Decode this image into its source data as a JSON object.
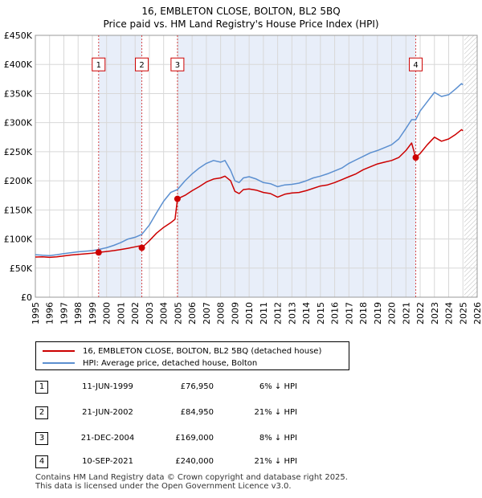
{
  "chart_data": {
    "type": "line",
    "title": "16, EMBLETON CLOSE, BOLTON, BL2 5BQ",
    "subtitle": "Price paid vs. HM Land Registry's House Price Index (HPI)",
    "xlabel": "",
    "ylabel": "",
    "xlim": [
      1995,
      2026
    ],
    "ylim": [
      0,
      450000
    ],
    "x_ticks": [
      "1995",
      "1996",
      "1997",
      "1998",
      "1999",
      "2000",
      "2001",
      "2002",
      "2003",
      "2004",
      "2005",
      "2006",
      "2007",
      "2008",
      "2009",
      "2010",
      "2011",
      "2012",
      "2013",
      "2014",
      "2015",
      "2016",
      "2017",
      "2018",
      "2019",
      "2020",
      "2021",
      "2022",
      "2023",
      "2024",
      "2025",
      "2026"
    ],
    "y_ticks": [
      {
        "value": 0,
        "label": "£0"
      },
      {
        "value": 50000,
        "label": "£50K"
      },
      {
        "value": 100000,
        "label": "£100K"
      },
      {
        "value": 150000,
        "label": "£150K"
      },
      {
        "value": 200000,
        "label": "£200K"
      },
      {
        "value": 250000,
        "label": "£250K"
      },
      {
        "value": 300000,
        "label": "£300K"
      },
      {
        "value": 350000,
        "label": "£350K"
      },
      {
        "value": 400000,
        "label": "£400K"
      },
      {
        "value": 450000,
        "label": "£450K"
      }
    ],
    "grid": true,
    "shaded_ranges": [
      [
        1999.44,
        2002.47
      ],
      [
        2004.97,
        2021.69
      ]
    ],
    "future_hatch_from": 2025.1,
    "series": [
      {
        "name": "16, EMBLETON CLOSE, BOLTON, BL2 5BQ (detached house)",
        "color": "#cc0000",
        "points": [
          [
            1995.0,
            69000
          ],
          [
            1995.5,
            69500
          ],
          [
            1996.0,
            68500
          ],
          [
            1996.5,
            69500
          ],
          [
            1997.0,
            71000
          ],
          [
            1997.5,
            72500
          ],
          [
            1998.0,
            73500
          ],
          [
            1998.5,
            74500
          ],
          [
            1999.0,
            75500
          ],
          [
            1999.44,
            76950
          ],
          [
            2000.0,
            78500
          ],
          [
            2000.5,
            80000
          ],
          [
            2001.0,
            82000
          ],
          [
            2001.5,
            84000
          ],
          [
            2002.0,
            86500
          ],
          [
            2002.3,
            88000
          ],
          [
            2002.47,
            84950
          ],
          [
            2003.0,
            97000
          ],
          [
            2003.5,
            110000
          ],
          [
            2004.0,
            120000
          ],
          [
            2004.5,
            128000
          ],
          [
            2004.8,
            134000
          ],
          [
            2004.97,
            169000
          ],
          [
            2005.5,
            175000
          ],
          [
            2006.0,
            183000
          ],
          [
            2006.5,
            190000
          ],
          [
            2007.0,
            198000
          ],
          [
            2007.5,
            203000
          ],
          [
            2008.0,
            205000
          ],
          [
            2008.3,
            208000
          ],
          [
            2008.7,
            200000
          ],
          [
            2009.0,
            182000
          ],
          [
            2009.3,
            178000
          ],
          [
            2009.6,
            185000
          ],
          [
            2010.0,
            186000
          ],
          [
            2010.5,
            184000
          ],
          [
            2011.0,
            180000
          ],
          [
            2011.5,
            178000
          ],
          [
            2012.0,
            172000
          ],
          [
            2012.5,
            177000
          ],
          [
            2013.0,
            179000
          ],
          [
            2013.5,
            180000
          ],
          [
            2014.0,
            183000
          ],
          [
            2014.5,
            187000
          ],
          [
            2015.0,
            191000
          ],
          [
            2015.5,
            193000
          ],
          [
            2016.0,
            197000
          ],
          [
            2016.5,
            202000
          ],
          [
            2017.0,
            207000
          ],
          [
            2017.5,
            212000
          ],
          [
            2018.0,
            219000
          ],
          [
            2018.5,
            224000
          ],
          [
            2019.0,
            229000
          ],
          [
            2019.5,
            232000
          ],
          [
            2020.0,
            235000
          ],
          [
            2020.5,
            240000
          ],
          [
            2021.0,
            252000
          ],
          [
            2021.4,
            265000
          ],
          [
            2021.69,
            240000
          ],
          [
            2022.0,
            247000
          ],
          [
            2022.5,
            262000
          ],
          [
            2023.0,
            275000
          ],
          [
            2023.5,
            268000
          ],
          [
            2024.0,
            272000
          ],
          [
            2024.5,
            280000
          ],
          [
            2024.9,
            288000
          ],
          [
            2025.0,
            286000
          ]
        ]
      },
      {
        "name": "HPI: Average price, detached house, Bolton",
        "color": "#5b8fd0",
        "points": [
          [
            1995.0,
            73000
          ],
          [
            1995.5,
            72000
          ],
          [
            1996.0,
            71500
          ],
          [
            1996.5,
            73000
          ],
          [
            1997.0,
            75000
          ],
          [
            1997.5,
            76500
          ],
          [
            1998.0,
            78000
          ],
          [
            1998.5,
            79000
          ],
          [
            1999.0,
            80000
          ],
          [
            1999.44,
            82000
          ],
          [
            2000.0,
            85000
          ],
          [
            2000.5,
            89000
          ],
          [
            2001.0,
            94000
          ],
          [
            2001.5,
            100000
          ],
          [
            2002.0,
            103000
          ],
          [
            2002.47,
            108000
          ],
          [
            2003.0,
            124000
          ],
          [
            2003.5,
            145000
          ],
          [
            2004.0,
            165000
          ],
          [
            2004.5,
            180000
          ],
          [
            2004.97,
            185000
          ],
          [
            2005.5,
            200000
          ],
          [
            2006.0,
            212000
          ],
          [
            2006.5,
            222000
          ],
          [
            2007.0,
            230000
          ],
          [
            2007.5,
            235000
          ],
          [
            2008.0,
            232000
          ],
          [
            2008.3,
            235000
          ],
          [
            2008.7,
            218000
          ],
          [
            2009.0,
            200000
          ],
          [
            2009.3,
            197000
          ],
          [
            2009.6,
            205000
          ],
          [
            2010.0,
            207000
          ],
          [
            2010.5,
            203000
          ],
          [
            2011.0,
            197000
          ],
          [
            2011.5,
            195000
          ],
          [
            2012.0,
            190000
          ],
          [
            2012.5,
            193000
          ],
          [
            2013.0,
            194000
          ],
          [
            2013.5,
            196000
          ],
          [
            2014.0,
            200000
          ],
          [
            2014.5,
            205000
          ],
          [
            2015.0,
            208000
          ],
          [
            2015.5,
            212000
          ],
          [
            2016.0,
            217000
          ],
          [
            2016.5,
            222000
          ],
          [
            2017.0,
            230000
          ],
          [
            2017.5,
            236000
          ],
          [
            2018.0,
            242000
          ],
          [
            2018.5,
            248000
          ],
          [
            2019.0,
            252000
          ],
          [
            2019.5,
            257000
          ],
          [
            2020.0,
            262000
          ],
          [
            2020.5,
            272000
          ],
          [
            2021.0,
            290000
          ],
          [
            2021.4,
            305000
          ],
          [
            2021.69,
            305000
          ],
          [
            2022.0,
            320000
          ],
          [
            2022.5,
            336000
          ],
          [
            2023.0,
            352000
          ],
          [
            2023.5,
            345000
          ],
          [
            2024.0,
            348000
          ],
          [
            2024.5,
            358000
          ],
          [
            2024.9,
            367000
          ],
          [
            2025.0,
            365000
          ]
        ]
      }
    ],
    "markers": [
      {
        "label": "1",
        "x": 1999.44,
        "y": 76950
      },
      {
        "label": "2",
        "x": 2002.47,
        "y": 84950
      },
      {
        "label": "3",
        "x": 2004.97,
        "y": 169000
      },
      {
        "label": "4",
        "x": 2021.69,
        "y": 240000
      }
    ]
  },
  "legend": {
    "items": [
      {
        "label": "16, EMBLETON CLOSE, BOLTON, BL2 5BQ (detached house)",
        "color": "#cc0000"
      },
      {
        "label": "HPI: Average price, detached house, Bolton",
        "color": "#5b8fd0"
      }
    ]
  },
  "transactions": [
    {
      "num": "1",
      "date": "11-JUN-1999",
      "price": "£76,950",
      "hpi": "6% ↓ HPI"
    },
    {
      "num": "2",
      "date": "21-JUN-2002",
      "price": "£84,950",
      "hpi": "21% ↓ HPI"
    },
    {
      "num": "3",
      "date": "21-DEC-2004",
      "price": "£169,000",
      "hpi": "8% ↓ HPI"
    },
    {
      "num": "4",
      "date": "10-SEP-2021",
      "price": "£240,000",
      "hpi": "21% ↓ HPI"
    }
  ],
  "footer": {
    "line1": "Contains HM Land Registry data © Crown copyright and database right 2025.",
    "line2": "This data is licensed under the Open Government Licence v3.0."
  }
}
